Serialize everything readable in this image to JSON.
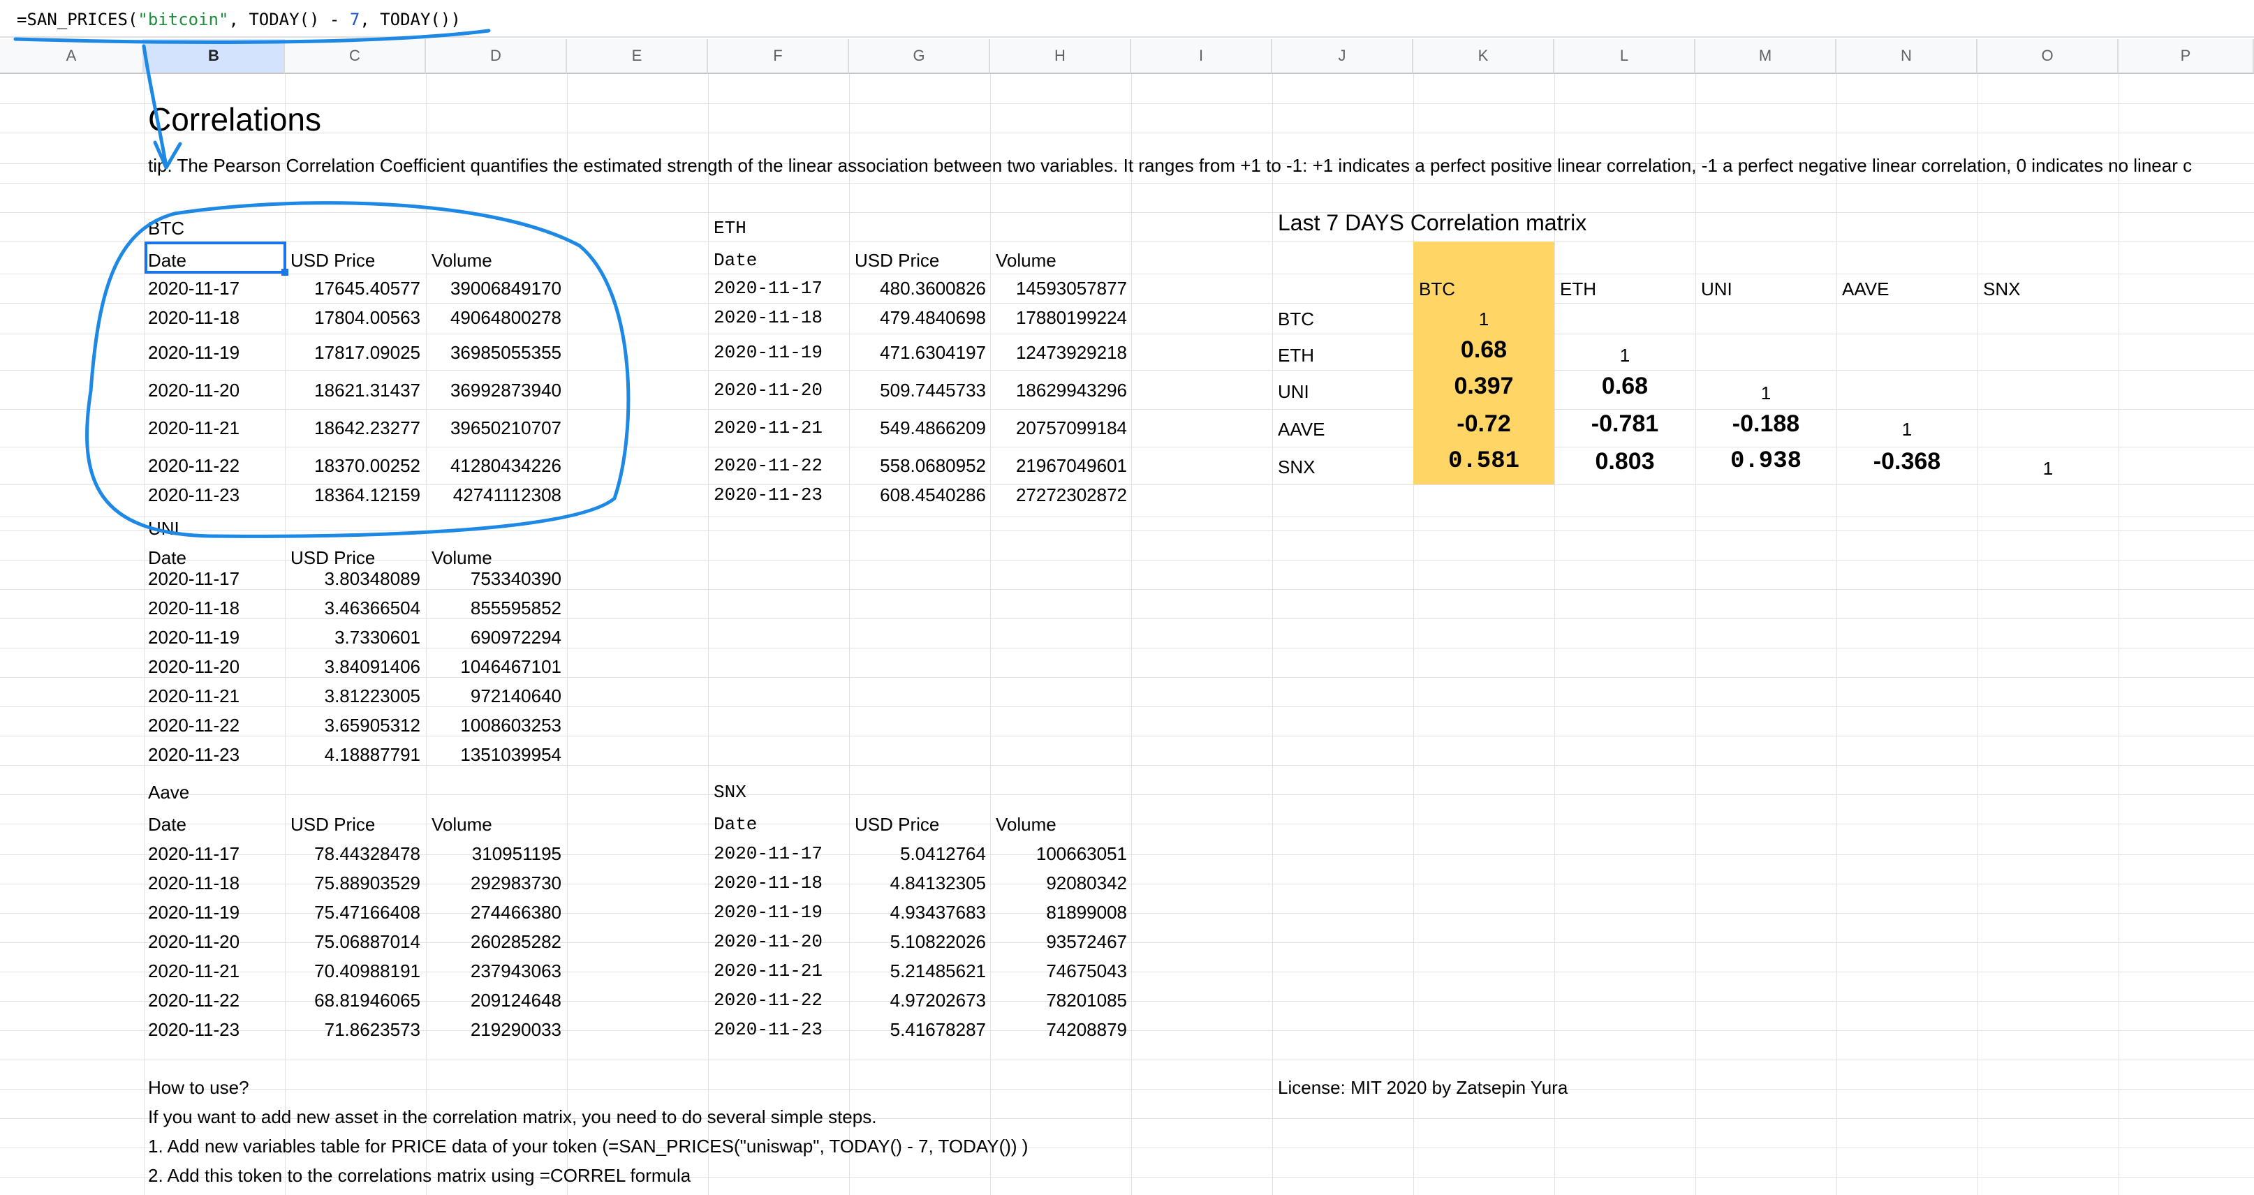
{
  "formula_bar": {
    "prefix": "=SAN_PRICES(",
    "string_arg": "\"bitcoin\"",
    "mid": ", TODAY() - ",
    "number_arg": "7",
    "suffix": ", TODAY())"
  },
  "columns": [
    "A",
    "B",
    "C",
    "D",
    "E",
    "F",
    "G",
    "H",
    "I",
    "J",
    "K",
    "L",
    "M",
    "N",
    "O",
    "P"
  ],
  "sheet": {
    "title": "Correlations",
    "tip": "tip: The Pearson Correlation Coefficient quantifies the estimated strength of the linear association between two variables. It ranges from +1 to -1: +1 indicates a perfect positive linear correlation, -1 a perfect negative linear correlation, 0 indicates no linear c",
    "header": {
      "date": "Date",
      "price": "USD Price",
      "volume": "Volume"
    },
    "btc": {
      "label": "BTC",
      "rows": [
        [
          "2020-11-17",
          "17645.40577",
          "39006849170"
        ],
        [
          "2020-11-18",
          "17804.00563",
          "49064800278"
        ],
        [
          "2020-11-19",
          "17817.09025",
          "36985055355"
        ],
        [
          "2020-11-20",
          "18621.31437",
          "36992873940"
        ],
        [
          "2020-11-21",
          "18642.23277",
          "39650210707"
        ],
        [
          "2020-11-22",
          "18370.00252",
          "41280434226"
        ],
        [
          "2020-11-23",
          "18364.12159",
          "42741112308"
        ]
      ]
    },
    "eth": {
      "label": "ETH",
      "rows": [
        [
          "2020-11-17",
          "480.3600826",
          "14593057877"
        ],
        [
          "2020-11-18",
          "479.4840698",
          "17880199224"
        ],
        [
          "2020-11-19",
          "471.6304197",
          "12473929218"
        ],
        [
          "2020-11-20",
          "509.7445733",
          "18629943296"
        ],
        [
          "2020-11-21",
          "549.4866209",
          "20757099184"
        ],
        [
          "2020-11-22",
          "558.0680952",
          "21967049601"
        ],
        [
          "2020-11-23",
          "608.4540286",
          "27272302872"
        ]
      ]
    },
    "uni": {
      "label": "UNI",
      "rows": [
        [
          "2020-11-17",
          "3.80348089",
          "753340390"
        ],
        [
          "2020-11-18",
          "3.46366504",
          "855595852"
        ],
        [
          "2020-11-19",
          "3.7330601",
          "690972294"
        ],
        [
          "2020-11-20",
          "3.84091406",
          "1046467101"
        ],
        [
          "2020-11-21",
          "3.81223005",
          "972140640"
        ],
        [
          "2020-11-22",
          "3.65905312",
          "1008603253"
        ],
        [
          "2020-11-23",
          "4.18887791",
          "1351039954"
        ]
      ]
    },
    "aave": {
      "label": "Aave",
      "rows": [
        [
          "2020-11-17",
          "78.44328478",
          "310951195"
        ],
        [
          "2020-11-18",
          "75.88903529",
          "292983730"
        ],
        [
          "2020-11-19",
          "75.47166408",
          "274466380"
        ],
        [
          "2020-11-20",
          "75.06887014",
          "260285282"
        ],
        [
          "2020-11-21",
          "70.40988191",
          "237943063"
        ],
        [
          "2020-11-22",
          "68.81946065",
          "209124648"
        ],
        [
          "2020-11-23",
          "71.8623573",
          "219290033"
        ]
      ]
    },
    "snx": {
      "label": "SNX",
      "rows": [
        [
          "2020-11-17",
          "5.0412764",
          "100663051"
        ],
        [
          "2020-11-18",
          "4.84132305",
          "92080342"
        ],
        [
          "2020-11-19",
          "4.93437683",
          "81899008"
        ],
        [
          "2020-11-20",
          "5.10822026",
          "93572467"
        ],
        [
          "2020-11-21",
          "5.21485621",
          "74675043"
        ],
        [
          "2020-11-22",
          "4.97202673",
          "78201085"
        ],
        [
          "2020-11-23",
          "5.41678287",
          "74208879"
        ]
      ]
    },
    "matrix": {
      "title": "Last 7 DAYS Correlation matrix",
      "col_labels": [
        "BTC",
        "ETH",
        "UNI",
        "AAVE",
        "SNX"
      ],
      "row_labels": [
        "BTC",
        "ETH",
        "UNI",
        "AAVE",
        "SNX"
      ],
      "rows": [
        [
          "1",
          "",
          "",
          "",
          ""
        ],
        [
          "0.68",
          "1",
          "",
          "",
          ""
        ],
        [
          "0.397",
          "0.68",
          "1",
          "",
          ""
        ],
        [
          "-0.72",
          "-0.781",
          "-0.188",
          "1",
          ""
        ],
        [
          "0.581",
          "0.803",
          "0.938",
          "-0.368",
          "1"
        ]
      ],
      "highlight_color": "#ffd666"
    },
    "how_to": {
      "title": "How to use?",
      "line1": "If you want to add new asset in the correlation matrix, you need to do several simple steps.",
      "line2": "1. Add new variables table for PRICE data of your token (=SAN_PRICES(\"uniswap\", TODAY() - 7, TODAY()) )",
      "line3": "2. Add this token to the correlations matrix using =CORREL formula"
    },
    "license": "License: MIT 2020 by Zatsepin Yura"
  },
  "colors": {
    "selection": "#1a73e8",
    "annotation": "#1e88e5",
    "header_bg": "#f8f9fa"
  }
}
